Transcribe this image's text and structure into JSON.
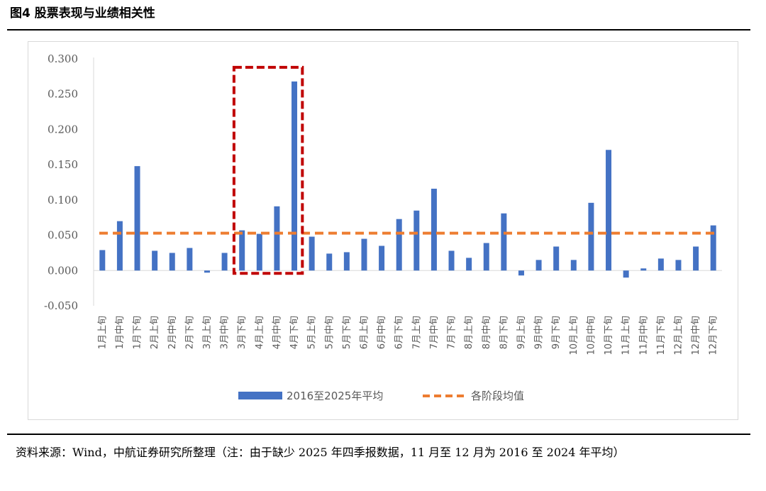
{
  "figure": {
    "title": "图4  股票表现与业绩相关性",
    "source": "资料来源：Wind，中航证券研究所整理（注：由于缺少 2025 年四季报数据，11 月至 12 月为 2016 至 2024 年平均）"
  },
  "chart_data": {
    "type": "bar",
    "categories": [
      "1月上旬",
      "1月中旬",
      "1月下旬",
      "2月上旬",
      "2月中旬",
      "2月下旬",
      "3月上旬",
      "3月中旬",
      "3月下旬",
      "4月上旬",
      "4月中旬",
      "4月下旬",
      "5月上旬",
      "5月中旬",
      "5月下旬",
      "6月上旬",
      "6月中旬",
      "6月下旬",
      "7月上旬",
      "7月中旬",
      "7月下旬",
      "8月上旬",
      "8月中旬",
      "8月下旬",
      "9月上旬",
      "9月中旬",
      "9月下旬",
      "10月上旬",
      "10月中旬",
      "10月下旬",
      "11月上旬",
      "11月中旬",
      "11月下旬",
      "12月上旬",
      "12月中旬",
      "12月下旬"
    ],
    "series": [
      {
        "name": "2016至2025年平均",
        "color": "#4472c4",
        "values": [
          0.029,
          0.07,
          0.148,
          0.028,
          0.025,
          0.032,
          -0.003,
          0.025,
          0.057,
          0.052,
          0.091,
          0.268,
          0.048,
          0.024,
          0.026,
          0.045,
          0.035,
          0.073,
          0.085,
          0.116,
          0.028,
          0.018,
          0.039,
          0.081,
          -0.007,
          0.015,
          0.034,
          0.015,
          0.096,
          0.171,
          -0.01,
          0.003,
          0.017,
          0.015,
          0.034,
          0.064
        ]
      },
      {
        "name": "各阶段均值",
        "type": "line",
        "style": "dashed",
        "color": "#ed7d31",
        "value": 0.053
      }
    ],
    "y_ticks": [
      "0.300",
      "0.250",
      "0.200",
      "0.150",
      "0.100",
      "0.050",
      "0.000",
      "-0.050"
    ],
    "ylim": [
      -0.05,
      0.3
    ],
    "grid": false,
    "legend_position": "bottom",
    "highlight": {
      "color": "#c00000",
      "style": "dashed",
      "categories": [
        "3月下旬",
        "4月上旬",
        "4月中旬",
        "4月下旬"
      ]
    }
  }
}
